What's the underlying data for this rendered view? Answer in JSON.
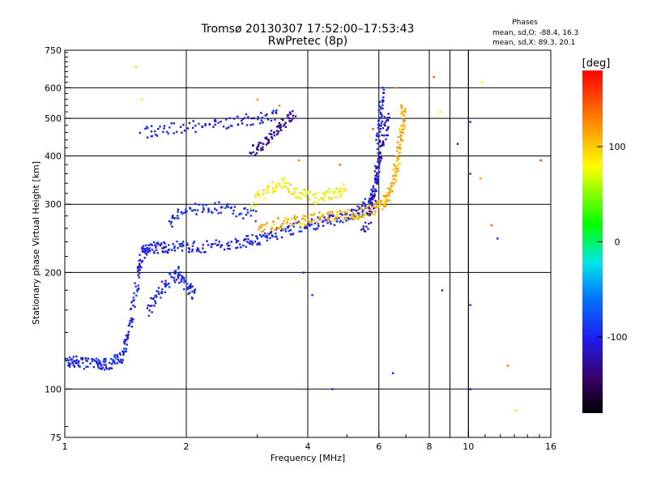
{
  "header": {
    "title_line1": "Tromsø 20130307 17:52:00–17:53:43",
    "title_line2": "RwPretec (8p)"
  },
  "phases_box": {
    "heading": "Phases",
    "line_o": "mean, sd,O: -88.4, 16.3",
    "line_x": "mean, sd,X: 89.3, 20.1"
  },
  "colorbar": {
    "label": "[deg]",
    "tick_labels": [
      "100",
      "0",
      "-100"
    ],
    "tick_values": [
      100,
      0,
      -100
    ],
    "range": [
      -180,
      180
    ]
  },
  "chart_data": {
    "type": "scatter",
    "xlabel": "Frequency [MHz]",
    "ylabel": "Stationary phase Virtual Height [km]",
    "x_scale": "log",
    "y_scale": "log",
    "xlim": [
      1,
      16
    ],
    "ylim": [
      75,
      750
    ],
    "x_ticks": [
      1,
      2,
      4,
      6,
      8,
      10,
      16
    ],
    "x_tick_labels": [
      "1",
      "2",
      "4",
      "6",
      "8",
      "10",
      "16"
    ],
    "y_ticks": [
      75,
      100,
      200,
      300,
      400,
      500,
      600,
      750
    ],
    "y_tick_labels": [
      "75",
      "100",
      "200",
      "300",
      "400",
      "500",
      "600",
      "750"
    ],
    "grid": true,
    "color_encoding": "phase in degrees, rainbow colormap",
    "traces": [
      {
        "points": [
          [
            1.0,
            117
          ],
          [
            1.05,
            118
          ],
          [
            1.1,
            117
          ],
          [
            1.2,
            116
          ],
          [
            1.25,
            116
          ],
          [
            1.32,
            117
          ],
          [
            1.38,
            122
          ],
          [
            1.42,
            135
          ],
          [
            1.48,
            160
          ],
          [
            1.52,
            200
          ],
          [
            1.55,
            225
          ],
          [
            1.6,
            230
          ],
          [
            1.7,
            232
          ],
          [
            1.8,
            233
          ],
          [
            2.0,
            233
          ],
          [
            2.2,
            233
          ],
          [
            2.5,
            236
          ],
          [
            2.8,
            241
          ],
          [
            3.0,
            244
          ],
          [
            3.3,
            251
          ],
          [
            3.6,
            258
          ],
          [
            4.0,
            265
          ],
          [
            4.4,
            271
          ],
          [
            4.8,
            277
          ],
          [
            5.2,
            284
          ],
          [
            5.5,
            292
          ],
          [
            5.7,
            305
          ],
          [
            5.85,
            330
          ],
          [
            5.95,
            380
          ],
          [
            6.0,
            460
          ],
          [
            6.05,
            520
          ],
          [
            6.1,
            590
          ]
        ],
        "phase": -100
      },
      {
        "points": [
          [
            3.0,
            262
          ],
          [
            3.4,
            268
          ],
          [
            3.8,
            272
          ],
          [
            4.2,
            276
          ],
          [
            4.6,
            279
          ],
          [
            5.0,
            281
          ],
          [
            5.4,
            285
          ],
          [
            5.8,
            292
          ],
          [
            6.1,
            300
          ],
          [
            6.3,
            315
          ],
          [
            6.5,
            340
          ],
          [
            6.65,
            380
          ],
          [
            6.75,
            430
          ],
          [
            6.85,
            480
          ],
          [
            6.9,
            540
          ]
        ],
        "phase": 110
      },
      {
        "points": [
          [
            1.8,
            270
          ],
          [
            2.0,
            290
          ],
          [
            2.3,
            295
          ],
          [
            2.6,
            290
          ],
          [
            3.0,
            280
          ]
        ],
        "phase": -95
      },
      {
        "points": [
          [
            1.55,
            460
          ],
          [
            1.8,
            470
          ],
          [
            2.2,
            480
          ],
          [
            2.6,
            490
          ],
          [
            3.0,
            500
          ],
          [
            3.4,
            510
          ]
        ],
        "phase": -105
      },
      {
        "points": [
          [
            2.9,
            410
          ],
          [
            3.1,
            430
          ],
          [
            3.3,
            460
          ],
          [
            3.5,
            490
          ],
          [
            3.7,
            520
          ]
        ],
        "phase": -130
      },
      {
        "points": [
          [
            1.6,
            160
          ],
          [
            1.7,
            175
          ],
          [
            1.8,
            190
          ],
          [
            1.9,
            200
          ],
          [
            2.0,
            185
          ],
          [
            2.1,
            175
          ]
        ],
        "phase": -100
      },
      {
        "points": [
          [
            2.9,
            300
          ],
          [
            3.2,
            330
          ],
          [
            3.5,
            340
          ],
          [
            3.8,
            320
          ],
          [
            4.2,
            310
          ],
          [
            4.6,
            320
          ],
          [
            5.0,
            330
          ]
        ],
        "phase": 80
      },
      {
        "points": [
          [
            5.5,
            250
          ],
          [
            5.8,
            300
          ],
          [
            6.0,
            380
          ],
          [
            6.2,
            450
          ],
          [
            6.3,
            520
          ]
        ],
        "phase": -120
      }
    ],
    "isolated_points": [
      [
        1.5,
        680,
        60
      ],
      [
        1.55,
        560,
        90
      ],
      [
        3.0,
        560,
        120
      ],
      [
        3.4,
        540,
        130
      ],
      [
        3.9,
        100,
        140
      ],
      [
        4.6,
        100,
        -110
      ],
      [
        5.8,
        470,
        150
      ],
      [
        6.5,
        110,
        -100
      ],
      [
        6.6,
        600,
        120
      ],
      [
        8.2,
        640,
        150
      ],
      [
        8.5,
        520,
        70
      ],
      [
        8.6,
        180,
        -120
      ],
      [
        9.4,
        430,
        -130
      ],
      [
        10.1,
        490,
        -100
      ],
      [
        10.1,
        360,
        -100
      ],
      [
        10.1,
        165,
        -100
      ],
      [
        10.1,
        100,
        -110
      ],
      [
        10.7,
        350,
        120
      ],
      [
        10.8,
        620,
        80
      ],
      [
        11.4,
        265,
        150
      ],
      [
        11.8,
        245,
        -100
      ],
      [
        12.5,
        115,
        140
      ],
      [
        13.1,
        88,
        90
      ],
      [
        15.1,
        390,
        160
      ],
      [
        3.9,
        200,
        -100
      ],
      [
        4.1,
        175,
        -100
      ],
      [
        3.8,
        390,
        130
      ],
      [
        4.8,
        380,
        140
      ]
    ]
  }
}
